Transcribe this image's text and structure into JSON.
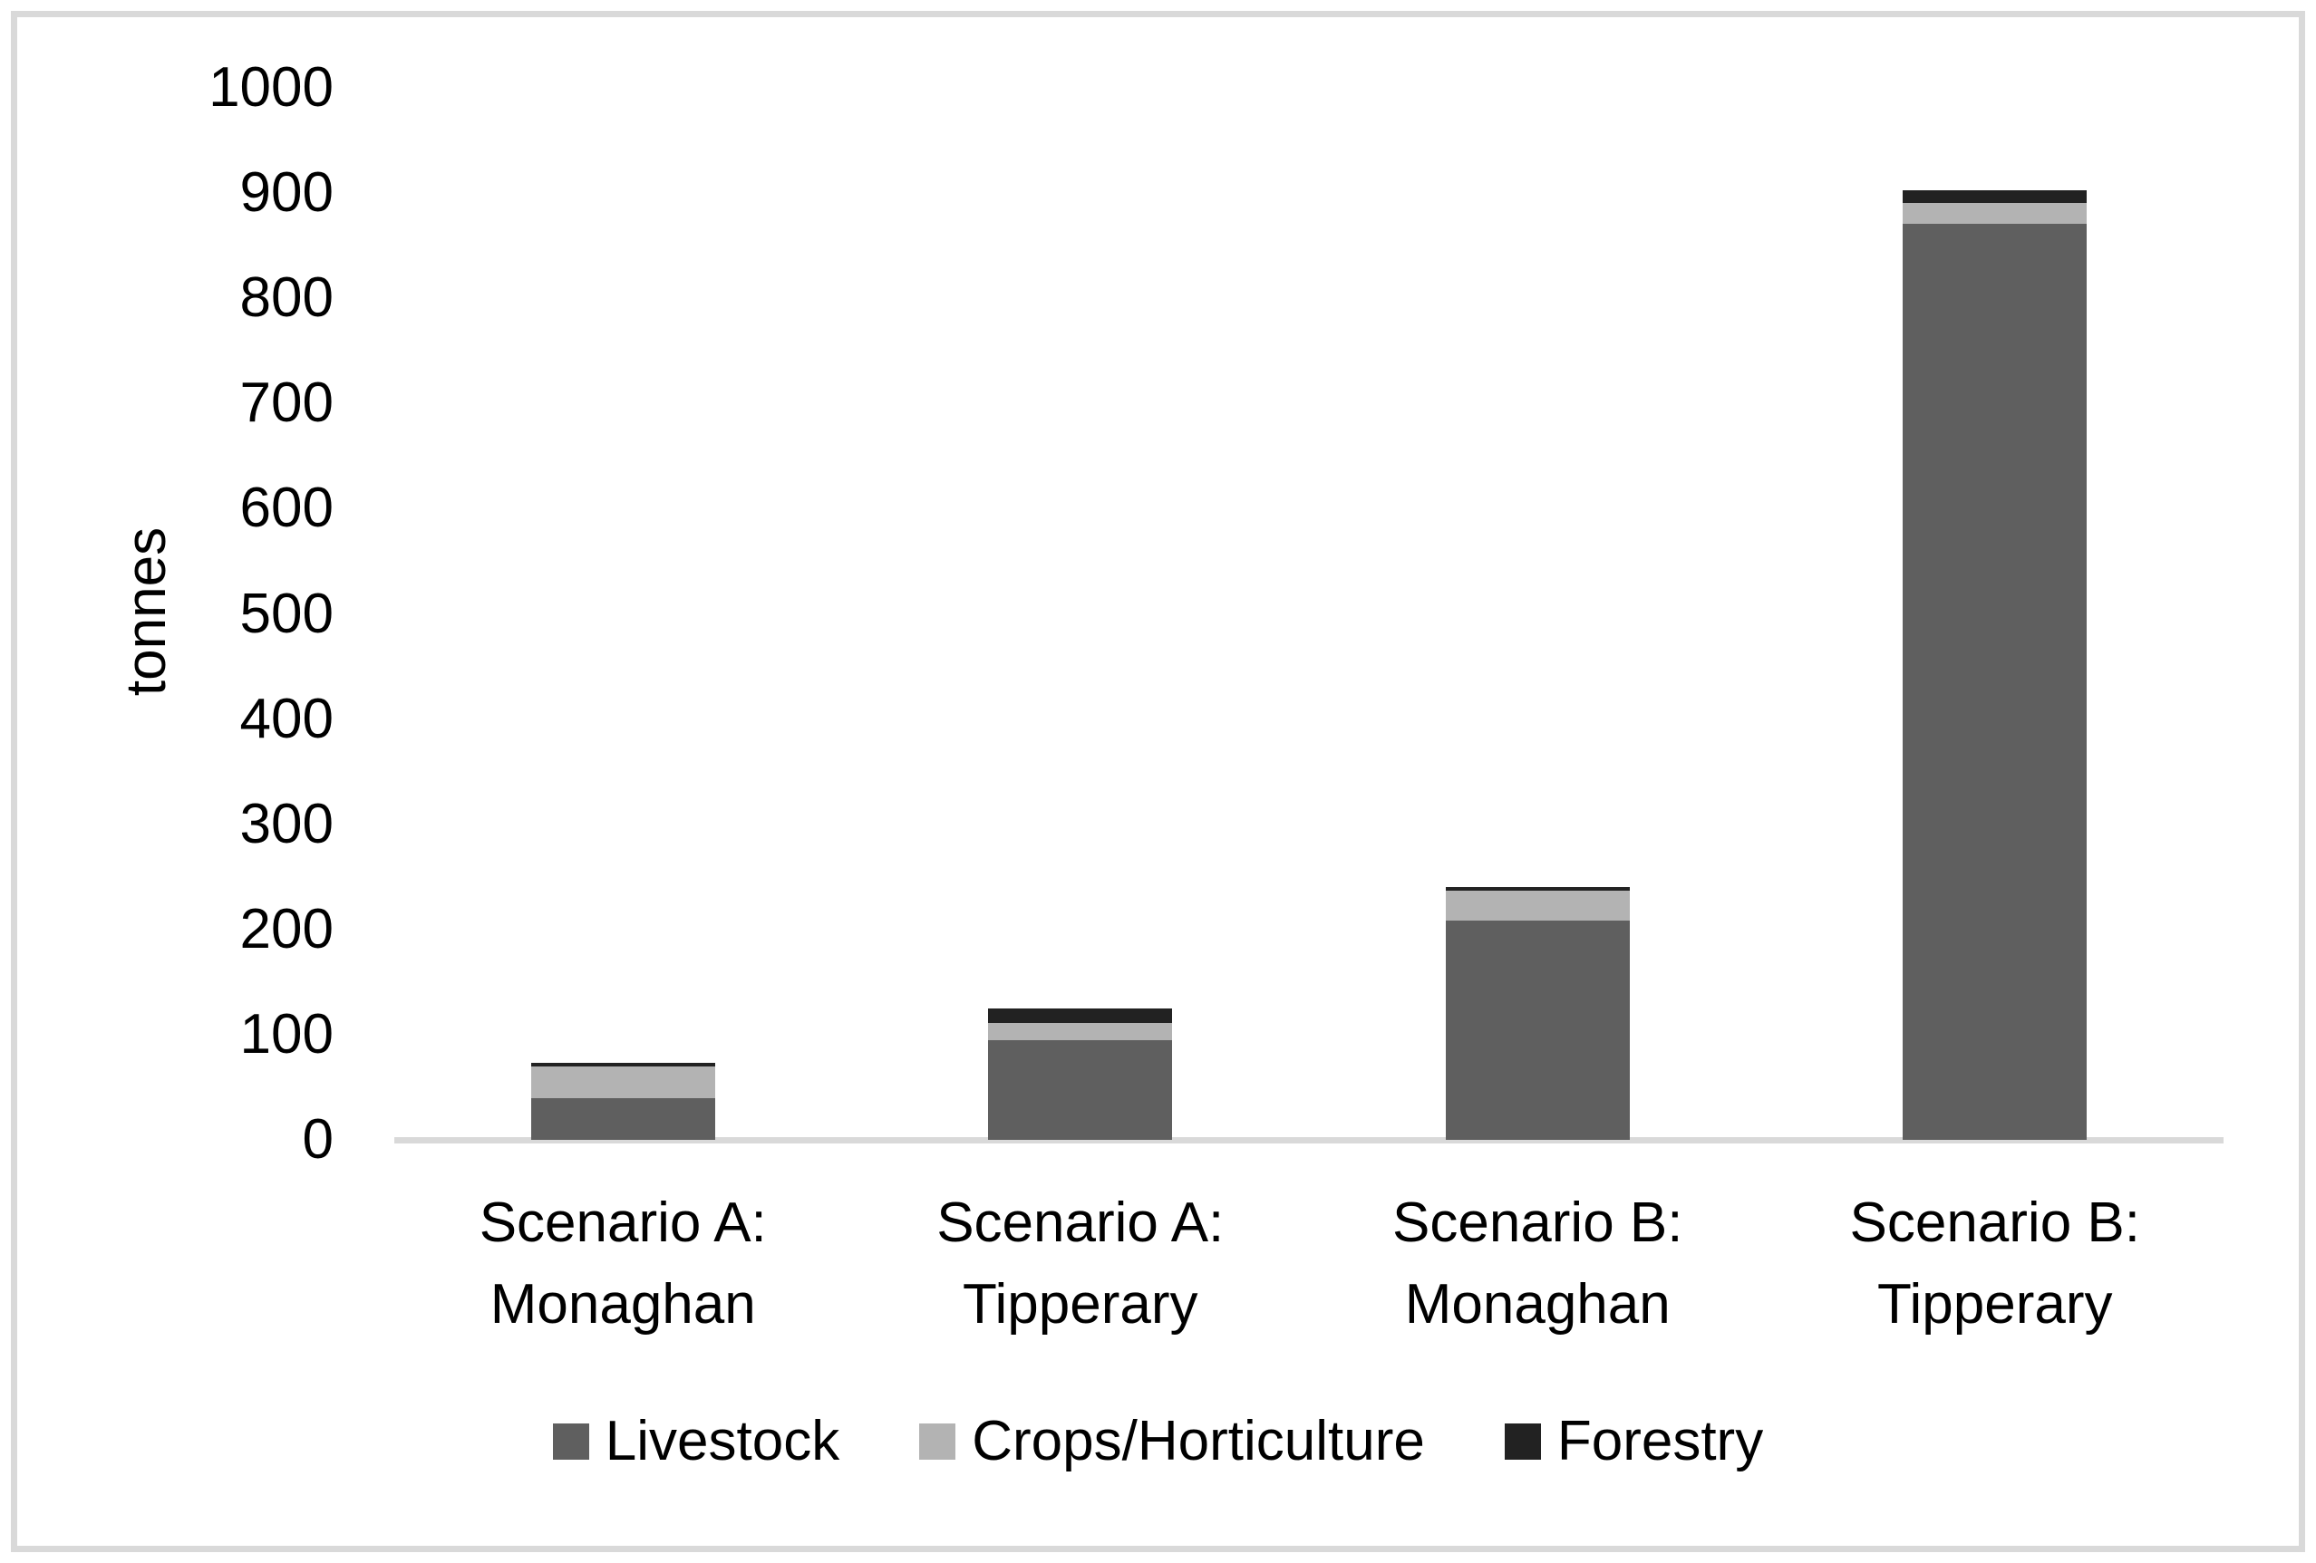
{
  "chart_data": {
    "type": "bar",
    "stacked": true,
    "title": "",
    "ylabel": "tonnes",
    "xlabel": "",
    "ylim": [
      0,
      1000
    ],
    "ytick_interval": 100,
    "yticks": [
      0,
      100,
      200,
      300,
      400,
      500,
      600,
      700,
      800,
      900,
      1000
    ],
    "grid": false,
    "legend_position": "bottom",
    "categories": [
      {
        "line1": "Scenario A:",
        "line2": "Monaghan",
        "label": "Scenario A: Monaghan"
      },
      {
        "line1": "Scenario A:",
        "line2": "Tipperary",
        "label": "Scenario A: Tipperary"
      },
      {
        "line1": "Scenario B:",
        "line2": "Monaghan",
        "label": "Scenario B: Monaghan"
      },
      {
        "line1": "Scenario B:",
        "line2": "Tipperary",
        "label": "Scenario B: Tipperary"
      }
    ],
    "series": [
      {
        "name": "Livestock",
        "color": "#5f5f5f",
        "values": [
          40,
          95,
          208,
          871
        ]
      },
      {
        "name": "Crops/Horticulture",
        "color": "#b3b3b3",
        "values": [
          30,
          16,
          29,
          20
        ]
      },
      {
        "name": "Forestry",
        "color": "#222222",
        "values": [
          3,
          14,
          3,
          12
        ]
      }
    ],
    "totals": [
      73,
      125,
      240,
      903
    ]
  },
  "colors": {
    "background": "#ffffff",
    "frame_border": "#d9d9d9",
    "axis_line": "#d9d9d9",
    "text": "#000000"
  }
}
